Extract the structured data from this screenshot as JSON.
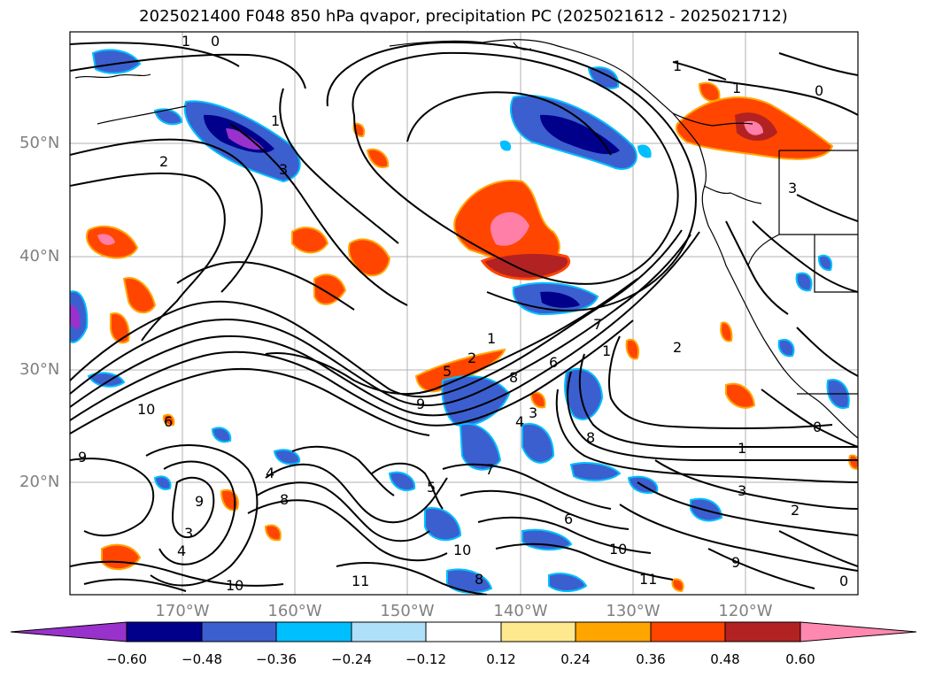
{
  "title": "2025021400 F048 850 hPa qvapor, precipitation PC (2025021612 - 2025021712)",
  "lat_labels": [
    "50°N",
    "40°N",
    "30°N",
    "20°N"
  ],
  "lon_labels": [
    "170°W",
    "160°W",
    "150°W",
    "140°W",
    "130°W",
    "120°W"
  ],
  "colorbar": {
    "colors": [
      "#9932cc",
      "#00008b",
      "#3b5fcf",
      "#00bfff",
      "#aee0fa",
      "#ffffff",
      "#ffe98f",
      "#ffa500",
      "#ff4500",
      "#b22222",
      "#ff7fa8",
      "#ff88b0"
    ],
    "ticks": [
      "−0.60",
      "−0.48",
      "−0.36",
      "−0.24",
      "−0.12",
      "0.12",
      "0.24",
      "0.36",
      "0.48",
      "0.60"
    ]
  },
  "contour_labels": [
    "1",
    "0",
    "1",
    "2",
    "3",
    "1",
    "0",
    "3",
    "2",
    "1",
    "2",
    "1",
    "7",
    "6",
    "8",
    "5",
    "9",
    "10",
    "6",
    "4",
    "3",
    "8",
    "0",
    "1",
    "3",
    "2",
    "9",
    "4",
    "8",
    "7",
    "6",
    "10",
    "9",
    "11",
    "10",
    "11",
    "8",
    "10",
    "9",
    "3",
    "4",
    "5",
    "1",
    "0"
  ]
}
